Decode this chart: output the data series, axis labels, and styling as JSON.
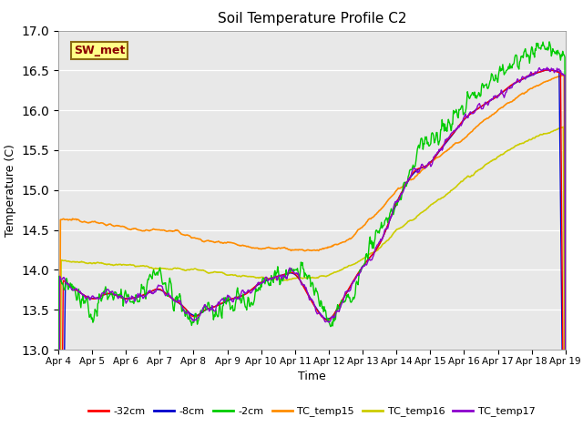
{
  "title": "Soil Temperature Profile C2",
  "xlabel": "Time",
  "ylabel": "Temperature (C)",
  "ylim": [
    13.0,
    17.0
  ],
  "yticks": [
    13.0,
    13.5,
    14.0,
    14.5,
    15.0,
    15.5,
    16.0,
    16.5,
    17.0
  ],
  "xlim": [
    0,
    15
  ],
  "xtick_labels": [
    "Apr 4",
    "Apr 5",
    "Apr 6",
    "Apr 7",
    "Apr 8",
    "Apr 9",
    "Apr 10",
    "Apr 11",
    "Apr 12",
    "Apr 13",
    "Apr 14",
    "Apr 15",
    "Apr 16",
    "Apr 17",
    "Apr 18",
    "Apr 19"
  ],
  "annotation_text": "SW_met",
  "annotation_color": "#8B0000",
  "annotation_bg": "#FFFF88",
  "annotation_border": "#8B6914",
  "bg_color": "#E8E8E8",
  "fig_bg": "#FFFFFF",
  "series": {
    "-32cm": {
      "color": "#FF0000",
      "lw": 1.0,
      "zorder": 5
    },
    "-8cm": {
      "color": "#0000CC",
      "lw": 1.0,
      "zorder": 4
    },
    "-2cm": {
      "color": "#00CC00",
      "lw": 1.0,
      "zorder": 6
    },
    "TC_temp15": {
      "color": "#FF8C00",
      "lw": 1.2,
      "zorder": 3
    },
    "TC_temp16": {
      "color": "#CCCC00",
      "lw": 1.2,
      "zorder": 2
    },
    "TC_temp17": {
      "color": "#8B00CC",
      "lw": 1.0,
      "zorder": 7
    }
  }
}
